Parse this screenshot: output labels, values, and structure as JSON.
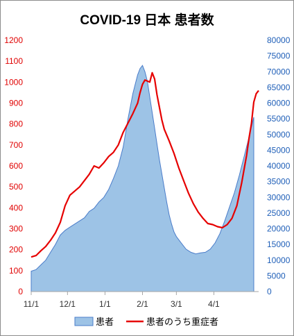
{
  "chart_data": {
    "type": "area+line",
    "title": "COVID-19 日本 患者数",
    "x_categories": [
      "11/1",
      "12/1",
      "1/1",
      "2/1",
      "3/1",
      "4/1"
    ],
    "x_day_range": [
      0,
      184
    ],
    "y_left": {
      "ticks": [
        0,
        100,
        200,
        300,
        400,
        500,
        600,
        700,
        800,
        900,
        1000,
        1100,
        1200
      ],
      "ylim": [
        0,
        1200
      ],
      "color": "#e00000"
    },
    "y_right": {
      "ticks": [
        0,
        5000,
        10000,
        15000,
        20000,
        25000,
        30000,
        35000,
        40000,
        45000,
        50000,
        55000,
        60000,
        65000,
        70000,
        75000,
        80000
      ],
      "ylim": [
        0,
        80000
      ],
      "color": "#1f5fb8"
    },
    "series": [
      {
        "name": "患者",
        "kind": "area",
        "axis": "right",
        "fill": "#9dc3e6",
        "stroke": "#4a7cc9",
        "points": [
          [
            0,
            6500
          ],
          [
            4,
            7000
          ],
          [
            8,
            8500
          ],
          [
            12,
            10000
          ],
          [
            16,
            12500
          ],
          [
            20,
            15000
          ],
          [
            24,
            18000
          ],
          [
            28,
            19500
          ],
          [
            32,
            20500
          ],
          [
            36,
            21500
          ],
          [
            40,
            22500
          ],
          [
            44,
            23500
          ],
          [
            48,
            25500
          ],
          [
            52,
            26500
          ],
          [
            56,
            28500
          ],
          [
            60,
            30000
          ],
          [
            64,
            32500
          ],
          [
            68,
            36000
          ],
          [
            72,
            40000
          ],
          [
            76,
            46000
          ],
          [
            80,
            55000
          ],
          [
            82,
            59000
          ],
          [
            84,
            63000
          ],
          [
            86,
            66000
          ],
          [
            88,
            69000
          ],
          [
            90,
            71000
          ],
          [
            92,
            72000
          ],
          [
            94,
            70000
          ],
          [
            96,
            67000
          ],
          [
            98,
            62000
          ],
          [
            100,
            57000
          ],
          [
            102,
            52000
          ],
          [
            104,
            47000
          ],
          [
            106,
            42000
          ],
          [
            108,
            37500
          ],
          [
            110,
            33000
          ],
          [
            112,
            28500
          ],
          [
            114,
            24500
          ],
          [
            116,
            21500
          ],
          [
            118,
            19000
          ],
          [
            120,
            17500
          ],
          [
            124,
            15500
          ],
          [
            128,
            13500
          ],
          [
            132,
            12500
          ],
          [
            136,
            12000
          ],
          [
            140,
            12300
          ],
          [
            144,
            12500
          ],
          [
            148,
            13500
          ],
          [
            152,
            15500
          ],
          [
            156,
            18500
          ],
          [
            160,
            22500
          ],
          [
            164,
            27000
          ],
          [
            168,
            31500
          ],
          [
            172,
            37000
          ],
          [
            176,
            43000
          ],
          [
            180,
            49000
          ],
          [
            184,
            55500
          ]
        ]
      },
      {
        "name": "患者のうち重症者",
        "kind": "line",
        "axis": "left",
        "stroke": "#e60000",
        "points": [
          [
            0,
            165
          ],
          [
            4,
            172
          ],
          [
            8,
            195
          ],
          [
            12,
            215
          ],
          [
            16,
            245
          ],
          [
            20,
            280
          ],
          [
            24,
            330
          ],
          [
            28,
            410
          ],
          [
            32,
            460
          ],
          [
            36,
            480
          ],
          [
            40,
            500
          ],
          [
            44,
            530
          ],
          [
            48,
            560
          ],
          [
            52,
            600
          ],
          [
            56,
            590
          ],
          [
            60,
            615
          ],
          [
            64,
            645
          ],
          [
            68,
            665
          ],
          [
            72,
            700
          ],
          [
            76,
            760
          ],
          [
            80,
            805
          ],
          [
            84,
            850
          ],
          [
            88,
            900
          ],
          [
            90,
            950
          ],
          [
            92,
            990
          ],
          [
            94,
            1010
          ],
          [
            96,
            1005
          ],
          [
            98,
            1000
          ],
          [
            100,
            1045
          ],
          [
            102,
            1015
          ],
          [
            104,
            940
          ],
          [
            106,
            880
          ],
          [
            108,
            820
          ],
          [
            110,
            775
          ],
          [
            114,
            720
          ],
          [
            118,
            660
          ],
          [
            122,
            590
          ],
          [
            126,
            530
          ],
          [
            130,
            470
          ],
          [
            134,
            420
          ],
          [
            138,
            380
          ],
          [
            142,
            350
          ],
          [
            146,
            325
          ],
          [
            150,
            320
          ],
          [
            154,
            310
          ],
          [
            158,
            305
          ],
          [
            162,
            320
          ],
          [
            166,
            350
          ],
          [
            170,
            410
          ],
          [
            174,
            520
          ],
          [
            178,
            650
          ],
          [
            180,
            730
          ],
          [
            182,
            800
          ],
          [
            184,
            905
          ],
          [
            186,
            945
          ],
          [
            188,
            960
          ]
        ]
      }
    ],
    "legend": [
      "患者",
      "患者のうち重症者"
    ],
    "legend_placement": "bottom",
    "grid": false
  }
}
